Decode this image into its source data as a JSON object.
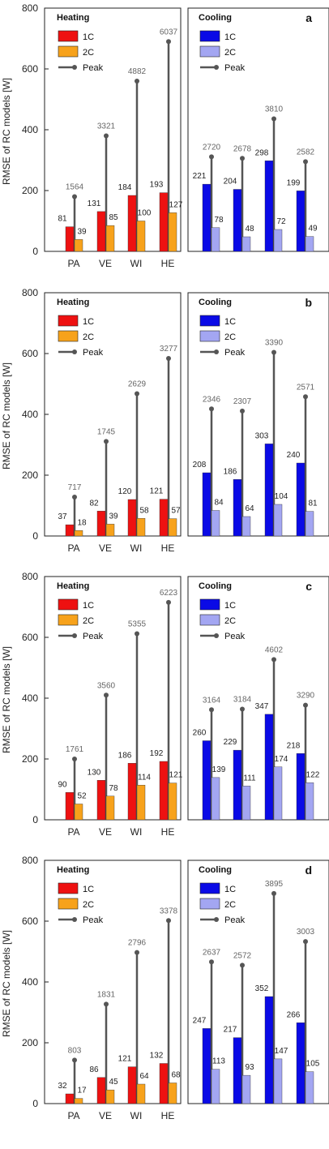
{
  "chart_data": [
    {
      "type": "bar",
      "panel": "a",
      "ylabel": "RMSE of RC models [W]",
      "ylim": [
        0,
        800
      ],
      "yticks": [
        0,
        200,
        400,
        600,
        800
      ],
      "heating": {
        "title": "Heating",
        "categories": [
          "PA",
          "VE",
          "WI",
          "HE"
        ],
        "series": [
          {
            "name": "1C",
            "values": [
              81,
              131,
              184,
              193
            ]
          },
          {
            "name": "2C",
            "values": [
              39,
              85,
              100,
              127
            ]
          }
        ],
        "peak": {
          "name": "Peak",
          "line_top": [
            180,
            380,
            560,
            690
          ],
          "labels": [
            "1564",
            "3321",
            "4882",
            "6037"
          ]
        }
      },
      "cooling": {
        "title": "Cooling",
        "categories": [
          "",
          "",
          "",
          ""
        ],
        "series": [
          {
            "name": "1C",
            "values": [
              221,
              204,
              298,
              199
            ]
          },
          {
            "name": "2C",
            "values": [
              78,
              48,
              72,
              49
            ]
          }
        ],
        "peak": {
          "name": "Peak",
          "line_top": [
            311,
            306,
            436,
            295
          ],
          "labels": [
            "2720",
            "2678",
            "3810",
            "2582"
          ]
        }
      }
    },
    {
      "type": "bar",
      "panel": "b",
      "ylabel": "RMSE of RC models [W]",
      "ylim": [
        0,
        800
      ],
      "yticks": [
        0,
        200,
        400,
        600,
        800
      ],
      "heating": {
        "title": "Heating",
        "categories": [
          "PA",
          "VE",
          "WI",
          "HE"
        ],
        "series": [
          {
            "name": "1C",
            "values": [
              37,
              82,
              120,
              121
            ]
          },
          {
            "name": "2C",
            "values": [
              18,
              39,
              58,
              57
            ]
          }
        ],
        "peak": {
          "name": "Peak",
          "line_top": [
            128,
            311,
            468,
            584
          ],
          "labels": [
            "717",
            "1745",
            "2629",
            "3277"
          ]
        }
      },
      "cooling": {
        "title": "Cooling",
        "categories": [
          "",
          "",
          "",
          ""
        ],
        "series": [
          {
            "name": "1C",
            "values": [
              208,
              186,
              303,
              240
            ]
          },
          {
            "name": "2C",
            "values": [
              84,
              64,
              104,
              81
            ]
          }
        ],
        "peak": {
          "name": "Peak",
          "line_top": [
            418,
            411,
            604,
            458
          ],
          "labels": [
            "2346",
            "2307",
            "3390",
            "2571"
          ]
        }
      }
    },
    {
      "type": "bar",
      "panel": "c",
      "ylabel": "RMSE of RC models [W]",
      "ylim": [
        0,
        800
      ],
      "yticks": [
        0,
        200,
        400,
        600,
        800
      ],
      "heating": {
        "title": "Heating",
        "categories": [
          "PA",
          "VE",
          "WI",
          "HE"
        ],
        "series": [
          {
            "name": "1C",
            "values": [
              90,
              130,
              186,
              192
            ]
          },
          {
            "name": "2C",
            "values": [
              52,
              78,
              114,
              121
            ]
          }
        ],
        "peak": {
          "name": "Peak",
          "line_top": [
            200,
            410,
            612,
            715
          ],
          "labels": [
            "1761",
            "3560",
            "5355",
            "6223"
          ]
        }
      },
      "cooling": {
        "title": "Cooling",
        "categories": [
          "",
          "",
          "",
          ""
        ],
        "series": [
          {
            "name": "1C",
            "values": [
              260,
              229,
              347,
              218
            ]
          },
          {
            "name": "2C",
            "values": [
              139,
              111,
              174,
              122
            ]
          }
        ],
        "peak": {
          "name": "Peak",
          "line_top": [
            362,
            364,
            527,
            377
          ],
          "labels": [
            "3164",
            "3184",
            "4602",
            "3290"
          ]
        }
      }
    },
    {
      "type": "bar",
      "panel": "d",
      "ylabel": "RMSE of RC models [W]",
      "ylim": [
        0,
        800
      ],
      "yticks": [
        0,
        200,
        400,
        600,
        800
      ],
      "heating": {
        "title": "Heating",
        "categories": [
          "PA",
          "VE",
          "WI",
          "HE"
        ],
        "series": [
          {
            "name": "1C",
            "values": [
              32,
              86,
              121,
              132
            ]
          },
          {
            "name": "2C",
            "values": [
              17,
              45,
              64,
              68
            ]
          }
        ],
        "peak": {
          "name": "Peak",
          "line_top": [
            143,
            327,
            497,
            602
          ],
          "labels": [
            "803",
            "1831",
            "2796",
            "3378"
          ]
        }
      },
      "cooling": {
        "title": "Cooling",
        "categories": [
          "",
          "",
          "",
          ""
        ],
        "series": [
          {
            "name": "1C",
            "values": [
              247,
              217,
              352,
              266
            ]
          },
          {
            "name": "2C",
            "values": [
              113,
              93,
              147,
              105
            ]
          }
        ],
        "peak": {
          "name": "Peak",
          "line_top": [
            466,
            455,
            691,
            533
          ],
          "labels": [
            "2637",
            "2572",
            "3895",
            "3003"
          ]
        }
      }
    }
  ],
  "colors": {
    "heating_1c": "#ee1111",
    "heating_2c": "#f7a21b",
    "cooling_1c": "#0a0ae6",
    "cooling_2c": "#a3a6f2",
    "peak": "#555555",
    "peak_label": "#666666"
  }
}
